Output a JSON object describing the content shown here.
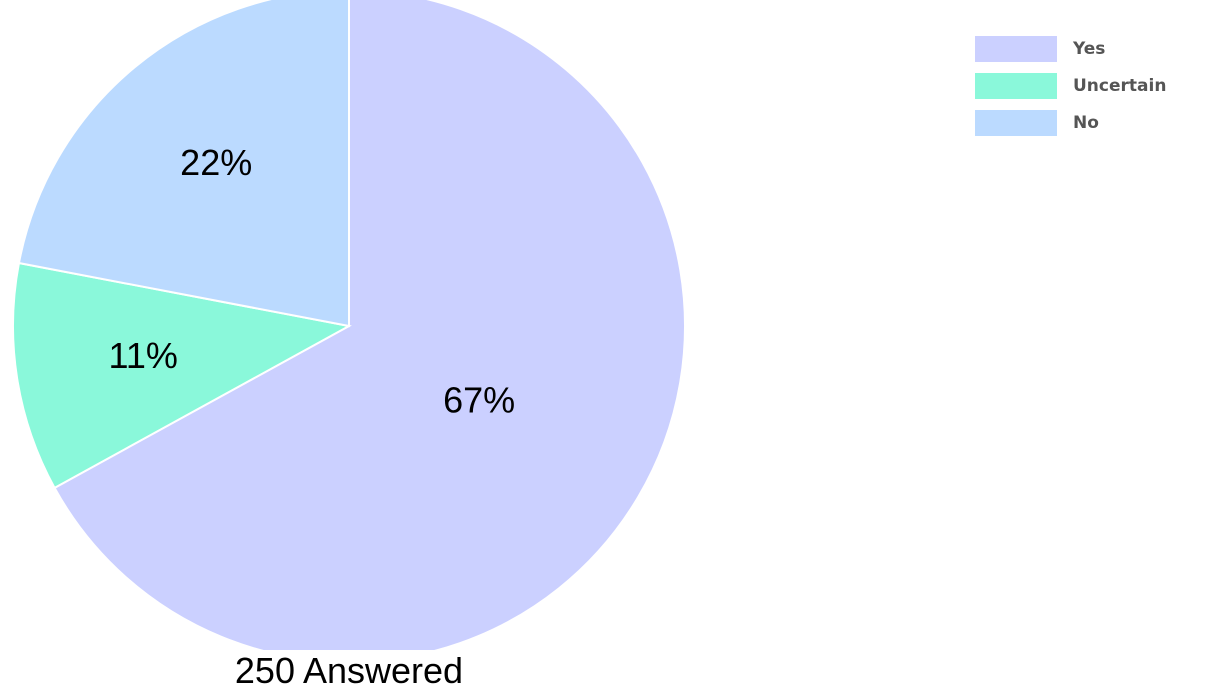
{
  "chart_data": {
    "type": "pie",
    "categories": [
      "Yes",
      "Uncertain",
      "No"
    ],
    "values": [
      67,
      11,
      22
    ],
    "data_labels": [
      "67%",
      "11%",
      "22%"
    ],
    "colors": [
      "#cbd0ff",
      "#8af8da",
      "#bbdaff"
    ],
    "start": "top",
    "direction": "clockwise",
    "legend_position": "right",
    "caption": "250 Answered"
  }
}
